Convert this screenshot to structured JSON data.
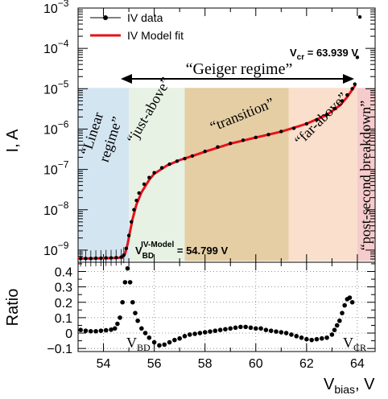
{
  "chart_data": [
    {
      "type": "scatter",
      "panel": "top",
      "ylabel": "I, A",
      "yscale": "log",
      "xlim": [
        53.0,
        64.7
      ],
      "ylim": [
        5e-10,
        0.001
      ],
      "yticks": [
        {
          "v": 1e-09,
          "base": "10",
          "exp": "−9"
        },
        {
          "v": 1e-08,
          "base": "10",
          "exp": "−8"
        },
        {
          "v": 1e-07,
          "base": "10",
          "exp": "−7"
        },
        {
          "v": 1e-06,
          "base": "10",
          "exp": "−6"
        },
        {
          "v": 1e-05,
          "base": "10",
          "exp": "−5"
        },
        {
          "v": 0.0001,
          "base": "10",
          "exp": "−4"
        },
        {
          "v": 0.001,
          "base": "10",
          "exp": "−3"
        }
      ],
      "legend": {
        "placement": "top-left",
        "entries": [
          {
            "label": "IV data",
            "style": "marker",
            "color": "#000000"
          },
          {
            "label": "IV Model fit",
            "style": "line",
            "color": "#e8101a"
          }
        ]
      },
      "regions": [
        {
          "label": "“Linear regime”",
          "x0": 53.0,
          "x1": 55.0,
          "color": "#cfe2f1"
        },
        {
          "label": "“just-above”",
          "x0": 55.0,
          "x1": 57.2,
          "color": "#e4f1e1"
        },
        {
          "label": "“transition”",
          "x0": 57.2,
          "x1": 61.3,
          "color": "#e2c99a"
        },
        {
          "label": "“far-above”",
          "x0": 61.3,
          "x1": 64.0,
          "color": "#f9dcc8"
        },
        {
          "label": "“post-second breakdown”",
          "x0": 64.0,
          "x1": 64.7,
          "color": "#f4c5c7"
        }
      ],
      "annotations": {
        "geiger": "“Geiger regime”",
        "vcr_prefix": "V",
        "vcr_sub": "cr",
        "vcr_value": " = 63.939 V",
        "vbd_prefix": "V",
        "vbd_sub": "BD",
        "vbd_sup": "IV-Model",
        "vbd_value": " = 54.799 V"
      },
      "series": [
        {
          "name": "IV data",
          "x": [
            53.1,
            53.3,
            53.5,
            53.7,
            53.9,
            54.1,
            54.3,
            54.5,
            54.7,
            54.8,
            54.9,
            55.0,
            55.1,
            55.2,
            55.3,
            55.4,
            55.6,
            55.8,
            56.0,
            56.3,
            56.6,
            56.9,
            57.2,
            57.5,
            58.0,
            58.5,
            59.0,
            59.5,
            60.0,
            60.5,
            61.0,
            61.5,
            62.0,
            62.4,
            62.8,
            63.1,
            63.4,
            63.6,
            63.8,
            63.9,
            64.0,
            64.1
          ],
          "y": [
            6.2e-10,
            6.2e-10,
            6.2e-10,
            6.3e-10,
            6.3e-10,
            6.4e-10,
            6.4e-10,
            6.5e-10,
            6.7e-10,
            7.5e-10,
            1.1e-09,
            2.3e-09,
            5e-09,
            1e-08,
            1.7e-08,
            2.6e-08,
            4.3e-08,
            6.3e-08,
            8.3e-08,
            1.1e-07,
            1.35e-07,
            1.6e-07,
            1.85e-07,
            2.15e-07,
            2.8e-07,
            3.6e-07,
            4.4e-07,
            5.3e-07,
            6.2e-07,
            7.3e-07,
            8.7e-07,
            1.05e-06,
            1.35e-06,
            1.7e-06,
            2.3e-06,
            3.2e-06,
            5e-06,
            7e-06,
            1e-05,
            1.3e-05,
            6e-05,
            0.0006
          ]
        },
        {
          "name": "IV Model fit",
          "x": [
            53.0,
            53.5,
            54.0,
            54.5,
            54.75,
            54.85,
            54.95,
            55.05,
            55.15,
            55.3,
            55.5,
            55.8,
            56.0,
            56.5,
            57.0,
            57.5,
            58.0,
            59.0,
            60.0,
            61.0,
            62.0,
            62.8,
            63.3,
            63.6,
            63.8,
            63.93
          ],
          "y": [
            6.2e-10,
            6.2e-10,
            6.3e-10,
            6.4e-10,
            6.6e-10,
            8e-10,
            1.4e-09,
            3e-09,
            6e-09,
            1.35e-08,
            2.7e-08,
            5.5e-08,
            7.8e-08,
            1.25e-07,
            1.7e-07,
            2.15e-07,
            2.75e-07,
            4.35e-07,
            6.2e-07,
            8.6e-07,
            1.35e-06,
            2.25e-06,
            3.8e-06,
            6.2e-06,
            9.5e-06,
            1.25e-05
          ]
        }
      ]
    },
    {
      "type": "scatter",
      "panel": "bottom",
      "xlabel_main": "V",
      "xlabel_sub": "bias",
      "xlabel_tail": ", V",
      "ylabel": "Ratio",
      "xlim": [
        53.0,
        64.7
      ],
      "ylim": [
        -0.12,
        0.46
      ],
      "xticks": [
        "54",
        "56",
        "58",
        "60",
        "62",
        "64"
      ],
      "yticks": [
        "−0.1",
        "0",
        "0.1",
        "0.2",
        "0.3",
        "0.4"
      ],
      "annotations": {
        "vbd_prefix": "V",
        "vbd_sub": "BD",
        "vcr_prefix": "V",
        "vcr_sub": "CR"
      },
      "series": [
        {
          "name": "Ratio",
          "x": [
            53.1,
            53.3,
            53.5,
            53.7,
            53.9,
            54.1,
            54.3,
            54.45,
            54.55,
            54.65,
            54.75,
            54.85,
            54.95,
            55.05,
            55.15,
            55.25,
            55.35,
            55.5,
            55.65,
            55.8,
            56.0,
            56.2,
            56.4,
            56.6,
            56.8,
            57.0,
            57.2,
            57.4,
            57.6,
            57.8,
            58.0,
            58.2,
            58.4,
            58.6,
            58.8,
            59.0,
            59.2,
            59.4,
            59.6,
            59.8,
            60.0,
            60.2,
            60.4,
            60.6,
            60.8,
            61.0,
            61.2,
            61.4,
            61.6,
            61.8,
            62.0,
            62.2,
            62.4,
            62.6,
            62.8,
            63.0,
            63.1,
            63.2,
            63.3,
            63.4,
            63.5,
            63.6,
            63.7,
            63.8
          ],
          "y": [
            0.02,
            0.015,
            0.012,
            0.012,
            0.015,
            0.018,
            0.022,
            0.03,
            0.06,
            0.1,
            0.2,
            0.33,
            0.42,
            0.33,
            0.2,
            0.13,
            0.08,
            0.03,
            0.0,
            -0.03,
            -0.06,
            -0.08,
            -0.075,
            -0.06,
            -0.045,
            -0.035,
            -0.02,
            -0.01,
            -0.005,
            0.0,
            0.005,
            0.01,
            0.015,
            0.02,
            0.025,
            0.03,
            0.035,
            0.04,
            0.04,
            0.035,
            0.03,
            0.03,
            0.02,
            0.015,
            0.01,
            0.005,
            0.0,
            -0.01,
            -0.02,
            -0.03,
            -0.04,
            -0.045,
            -0.04,
            -0.035,
            -0.03,
            -0.01,
            0.02,
            0.05,
            0.08,
            0.13,
            0.18,
            0.22,
            0.23,
            0.2
          ]
        }
      ]
    }
  ]
}
